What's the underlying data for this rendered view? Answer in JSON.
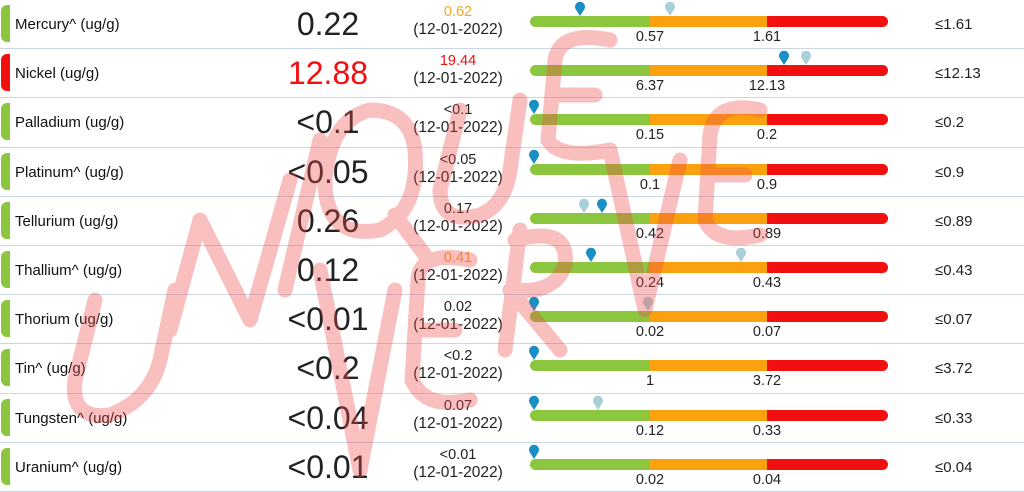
{
  "colors": {
    "normal": "#8cc63f",
    "caution": "#f9a10e",
    "high": "#f20f0f",
    "pin_current": "#1a8fc4",
    "pin_previous": "#a9cfd9"
  },
  "rows": [
    {
      "name": "Mercury^ (ug/g)",
      "value": "0.22",
      "value_color": "#222222",
      "status": "normal",
      "prev_value": "0.62",
      "prev_color": "#f5a623",
      "prev_date": "(12-01-2022)",
      "t1": "0.57",
      "t2": "1.61",
      "limit": "≤1.61",
      "pin_cur": 0.14,
      "pin_prev": 0.39
    },
    {
      "name": "Nickel (ug/g)",
      "value": "12.88",
      "value_color": "#f20f0f",
      "status": "high",
      "prev_value": "19.44",
      "prev_color": "#f20f0f",
      "prev_date": "(12-01-2022)",
      "t1": "6.37",
      "t2": "12.13",
      "limit": "≤12.13",
      "pin_cur": 0.71,
      "pin_prev": 0.77
    },
    {
      "name": "Palladium (ug/g)",
      "value": "<0.1",
      "value_color": "#222222",
      "status": "normal",
      "prev_value": "<0.1",
      "prev_color": "#222222",
      "prev_date": "(12-01-2022)",
      "t1": "0.15",
      "t2": "0.2",
      "limit": "≤0.2",
      "pin_cur": 0.01,
      "pin_prev": null
    },
    {
      "name": "Platinum^ (ug/g)",
      "value": "<0.05",
      "value_color": "#222222",
      "status": "normal",
      "prev_value": "<0.05",
      "prev_color": "#222222",
      "prev_date": "(12-01-2022)",
      "t1": "0.1",
      "t2": "0.9",
      "limit": "≤0.9",
      "pin_cur": 0.01,
      "pin_prev": null
    },
    {
      "name": "Tellurium (ug/g)",
      "value": "0.26",
      "value_color": "#222222",
      "status": "normal",
      "prev_value": "0.17",
      "prev_color": "#222222",
      "prev_date": "(12-01-2022)",
      "t1": "0.42",
      "t2": "0.89",
      "limit": "≤0.89",
      "pin_cur": 0.2,
      "pin_prev": 0.15
    },
    {
      "name": "Thallium^ (ug/g)",
      "value": "0.12",
      "value_color": "#222222",
      "status": "normal",
      "prev_value": "0.41",
      "prev_color": "#f5a623",
      "prev_date": "(12-01-2022)",
      "t1": "0.24",
      "t2": "0.43",
      "limit": "≤0.43",
      "pin_cur": 0.17,
      "pin_prev": 0.59
    },
    {
      "name": "Thorium (ug/g)",
      "value": "<0.01",
      "value_color": "#222222",
      "status": "normal",
      "prev_value": "0.02",
      "prev_color": "#222222",
      "prev_date": "(12-01-2022)",
      "t1": "0.02",
      "t2": "0.07",
      "limit": "≤0.07",
      "pin_cur": 0.01,
      "pin_prev": 0.33
    },
    {
      "name": "Tin^ (ug/g)",
      "value": "<0.2",
      "value_color": "#222222",
      "status": "normal",
      "prev_value": "<0.2",
      "prev_color": "#222222",
      "prev_date": "(12-01-2022)",
      "t1": "1",
      "t2": "3.72",
      "limit": "≤3.72",
      "pin_cur": 0.01,
      "pin_prev": null
    },
    {
      "name": "Tungsten^ (ug/g)",
      "value": "<0.04",
      "value_color": "#222222",
      "status": "normal",
      "prev_value": "0.07",
      "prev_color": "#222222",
      "prev_date": "(12-01-2022)",
      "t1": "0.12",
      "t2": "0.33",
      "limit": "≤0.33",
      "pin_cur": 0.01,
      "pin_prev": 0.19
    },
    {
      "name": "Uranium^ (ug/g)",
      "value": "<0.01",
      "value_color": "#222222",
      "status": "normal",
      "prev_value": "<0.01",
      "prev_color": "#222222",
      "prev_date": "(12-01-2022)",
      "t1": "0.02",
      "t2": "0.04",
      "limit": "≤0.04",
      "pin_cur": 0.01,
      "pin_prev": null
    }
  ],
  "watermark": {
    "text": "UNIQUE VERVE",
    "color": "#f04a4a"
  }
}
